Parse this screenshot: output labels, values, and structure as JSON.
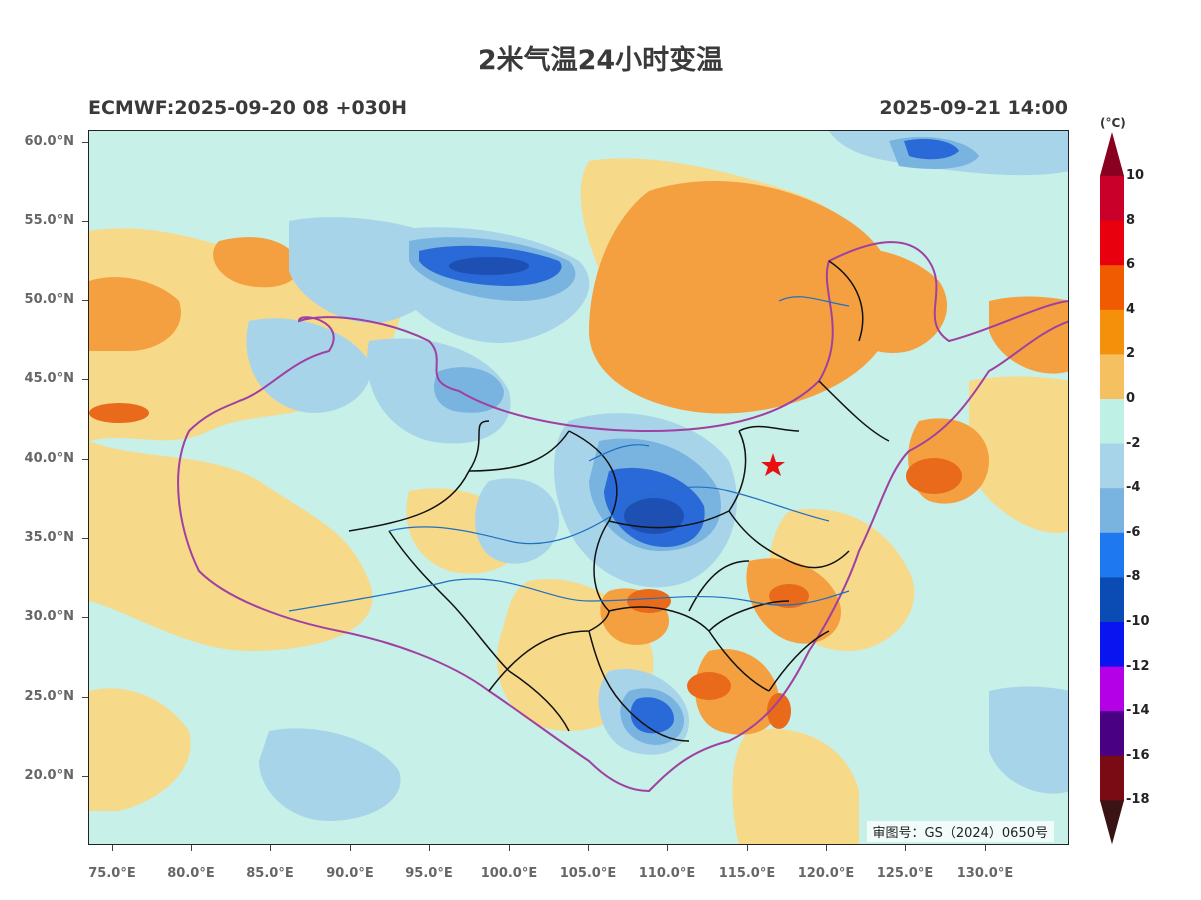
{
  "title": "2米气温24小时变温",
  "subtitle_left": "ECMWF:2025-09-20 08 +030H",
  "subtitle_right": "2025-09-21 14:00",
  "approval_number": "审图号：GS（2024）0650号",
  "lat_ticks": [
    "60.0°N",
    "55.0°N",
    "50.0°N",
    "45.0°N",
    "40.0°N",
    "35.0°N",
    "30.0°N",
    "25.0°N",
    "20.0°N"
  ],
  "lon_ticks": [
    "75.0°E",
    "80.0°E",
    "85.0°E",
    "90.0°E",
    "95.0°E",
    "100.0°E",
    "105.0°E",
    "110.0°E",
    "115.0°E",
    "120.0°E",
    "125.0°E",
    "130.0°E"
  ],
  "colorbar": {
    "unit": "(°C)",
    "labels": [
      "10",
      "8",
      "6",
      "4",
      "2",
      "0",
      "-2",
      "-4",
      "-6",
      "-8",
      "-10",
      "-12",
      "-14",
      "-16",
      "-18"
    ],
    "colors": [
      "#c8002a",
      "#e8000f",
      "#f05a00",
      "#f4900a",
      "#f5c060",
      "#bff0e6",
      "#a8d4ea",
      "#78b4df",
      "#1e78f0",
      "#0a4cb4",
      "#0a14f0",
      "#b400e6",
      "#4a0082",
      "#7a0a14"
    ],
    "top_triangle_color": "#8a0020",
    "bottom_triangle_color": "#3a1414"
  },
  "map_colors": {
    "cool": "#c6f0e8",
    "warm_light": "#f7d98a",
    "warm": "#f4a040",
    "warm_strong": "#e86a1a",
    "cold_light": "#a8d4ea",
    "cold": "#78b4df",
    "cold_strong": "#2a6ad8",
    "cold_deep": "#1e50b4",
    "border_national": "#a040a0",
    "border_province": "#111111",
    "river": "#2070c0"
  },
  "markers": {
    "capital_star_color": "#e81010"
  }
}
